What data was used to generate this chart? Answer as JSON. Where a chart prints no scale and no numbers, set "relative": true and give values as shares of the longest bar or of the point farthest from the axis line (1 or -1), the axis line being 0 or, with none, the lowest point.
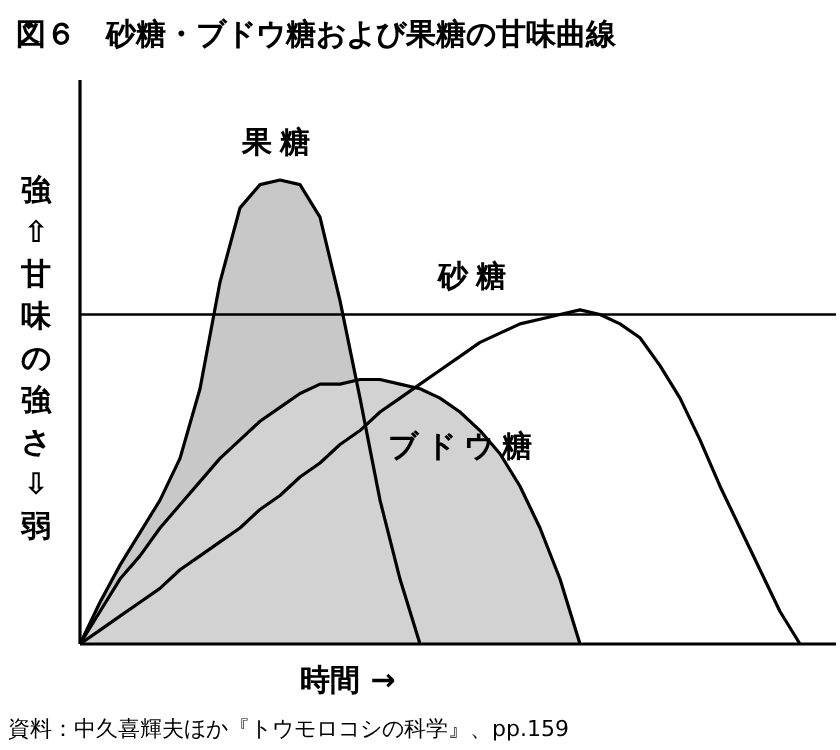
{
  "chart_data": {
    "type": "area",
    "title": "図６　砂糖・ブドウ糖および果糖の甘味曲線",
    "xlabel": "時間 →",
    "ylabel": "強⇧甘味の強さ⇩弱",
    "relative": true,
    "categories": [
      null,
      null,
      null,
      null,
      null,
      null,
      null,
      null,
      null,
      null,
      null,
      null,
      null,
      null,
      null,
      null,
      null,
      null,
      null,
      null,
      null,
      null,
      null,
      null,
      null,
      null,
      null,
      null,
      null,
      null,
      null,
      null,
      null,
      null,
      null,
      null,
      null,
      null
    ],
    "series": [
      {
        "name": "果糖",
        "color": "#c8c8c8",
        "values": [
          0,
          0.09,
          0.17,
          0.24,
          0.31,
          0.4,
          0.55,
          0.78,
          0.94,
          0.99,
          1,
          0.99,
          0.92,
          0.74,
          0.53,
          0.31,
          0.14,
          0,
          null,
          null,
          null,
          null,
          null,
          null,
          null,
          null,
          null,
          null,
          null,
          null,
          null,
          null,
          null,
          null,
          null,
          null,
          null,
          null
        ]
      },
      {
        "name": "ブドウ糖",
        "color": "#d2d2d2",
        "values": [
          0,
          0.07,
          0.14,
          0.19,
          0.25,
          0.3,
          0.35,
          0.4,
          0.44,
          0.48,
          0.51,
          0.54,
          0.56,
          0.56,
          0.57,
          0.57,
          0.56,
          0.55,
          0.53,
          0.5,
          0.46,
          0.41,
          0.34,
          0.25,
          0.14,
          0,
          null,
          null,
          null,
          null,
          null,
          null,
          null,
          null,
          null,
          null,
          null,
          null
        ]
      },
      {
        "name": "砂糖",
        "type": "line",
        "color": "#000000",
        "values": [
          0,
          0.03,
          0.06,
          0.09,
          0.12,
          0.16,
          0.19,
          0.22,
          0.25,
          0.29,
          0.32,
          0.36,
          0.39,
          0.43,
          0.46,
          0.5,
          0.53,
          0.56,
          0.59,
          0.62,
          0.65,
          0.67,
          0.69,
          0.7,
          0.71,
          0.72,
          0.71,
          0.69,
          0.66,
          0.6,
          0.53,
          0.44,
          0.34,
          0.25,
          0.16,
          0.07,
          0,
          null
        ]
      }
    ],
    "ref_lines": [
      {
        "axis": "y",
        "value": 0.71,
        "color": "#000000"
      }
    ],
    "annotations": [
      "資料：中久喜輝夫ほか『トウモロコシの科学』、pp.159"
    ]
  }
}
